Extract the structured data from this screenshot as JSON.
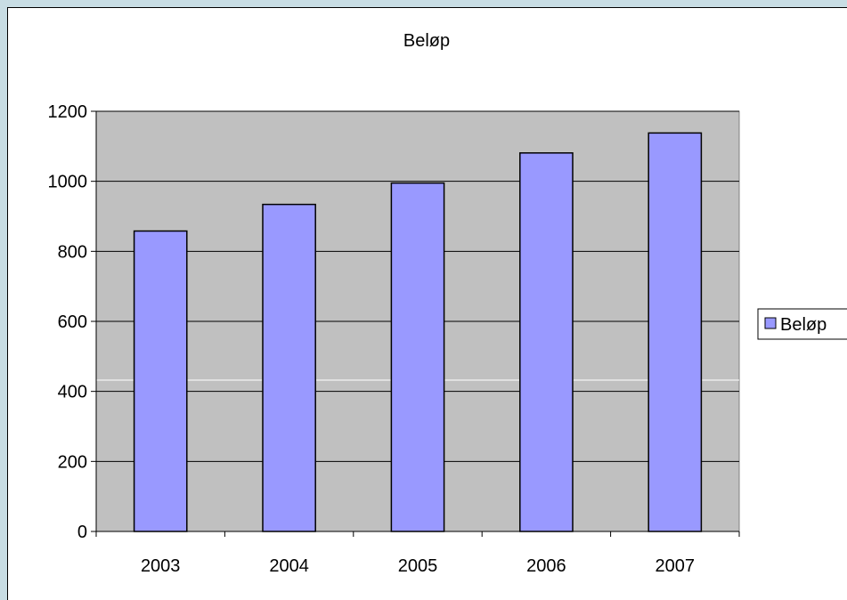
{
  "chart_data": {
    "type": "bar",
    "title": "Beløp",
    "categories": [
      "2003",
      "2004",
      "2005",
      "2006",
      "2007"
    ],
    "series": [
      {
        "name": "Beløp",
        "values": [
          858,
          934,
          995,
          1081,
          1138
        ]
      }
    ],
    "ylim": [
      0,
      1200
    ],
    "yticks": [
      "0",
      "200",
      "400",
      "600",
      "800",
      "1000",
      "1200"
    ],
    "grid": true,
    "legend": "right",
    "colors": {
      "bar": "#9999ff",
      "plot_background": "#c0c0c0",
      "outer_background": "#c8dde4"
    }
  }
}
